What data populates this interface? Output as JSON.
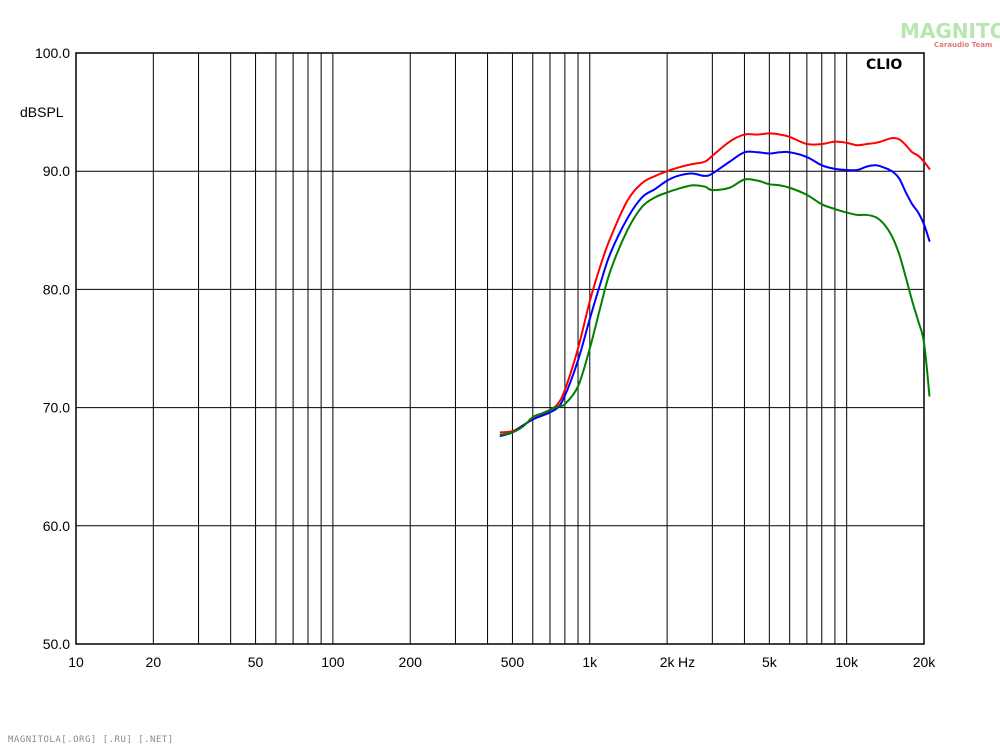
{
  "chart_data": {
    "type": "line",
    "title": "",
    "ylabel": "dBSPL",
    "xlabel": "Hz",
    "x_scale": "log",
    "xlim": [
      10,
      20000
    ],
    "ylim": [
      50,
      100
    ],
    "grid": true,
    "y_ticks": [
      50,
      60,
      70,
      80,
      90,
      100
    ],
    "y_tick_labels": [
      "50.0",
      "60.0",
      "70.0",
      "80.0",
      "90.0",
      "100.0"
    ],
    "x_tick_labels": [
      {
        "value": 10,
        "label": "10"
      },
      {
        "value": 20,
        "label": "20"
      },
      {
        "value": 50,
        "label": "50"
      },
      {
        "value": 100,
        "label": "100"
      },
      {
        "value": 200,
        "label": "200"
      },
      {
        "value": 500,
        "label": "500"
      },
      {
        "value": 1000,
        "label": "1k"
      },
      {
        "value": 2000,
        "label": "2k"
      },
      {
        "value": 5000,
        "label": "5k"
      },
      {
        "value": 10000,
        "label": "10k"
      },
      {
        "value": 20000,
        "label": "20k"
      }
    ],
    "x_gridlines": [
      20,
      30,
      40,
      50,
      60,
      70,
      80,
      90,
      100,
      200,
      300,
      400,
      500,
      600,
      700,
      800,
      900,
      1000,
      2000,
      3000,
      4000,
      5000,
      6000,
      7000,
      8000,
      9000,
      10000,
      20000
    ],
    "series": [
      {
        "color": "#ff0000",
        "points": [
          [
            450,
            67.9
          ],
          [
            500,
            68.0
          ],
          [
            550,
            68.5
          ],
          [
            600,
            69.0
          ],
          [
            650,
            69.4
          ],
          [
            700,
            69.8
          ],
          [
            750,
            70.3
          ],
          [
            800,
            71.5
          ],
          [
            900,
            75.0
          ],
          [
            1000,
            79.0
          ],
          [
            1100,
            82.0
          ],
          [
            1200,
            84.3
          ],
          [
            1400,
            87.5
          ],
          [
            1600,
            89.0
          ],
          [
            1800,
            89.6
          ],
          [
            2000,
            90.0
          ],
          [
            2200,
            90.3
          ],
          [
            2500,
            90.6
          ],
          [
            2800,
            90.8
          ],
          [
            3000,
            91.3
          ],
          [
            3500,
            92.5
          ],
          [
            4000,
            93.1
          ],
          [
            4500,
            93.1
          ],
          [
            5000,
            93.2
          ],
          [
            5500,
            93.1
          ],
          [
            6000,
            92.9
          ],
          [
            7000,
            92.3
          ],
          [
            8000,
            92.3
          ],
          [
            9000,
            92.5
          ],
          [
            10000,
            92.4
          ],
          [
            11000,
            92.2
          ],
          [
            12000,
            92.3
          ],
          [
            13000,
            92.4
          ],
          [
            14000,
            92.6
          ],
          [
            15000,
            92.8
          ],
          [
            16000,
            92.7
          ],
          [
            17000,
            92.2
          ],
          [
            18000,
            91.6
          ],
          [
            19000,
            91.3
          ],
          [
            20000,
            90.8
          ],
          [
            21000,
            90.2
          ]
        ]
      },
      {
        "color": "#0000ff",
        "points": [
          [
            450,
            67.6
          ],
          [
            500,
            67.9
          ],
          [
            550,
            68.5
          ],
          [
            600,
            69.0
          ],
          [
            650,
            69.3
          ],
          [
            700,
            69.6
          ],
          [
            750,
            70.0
          ],
          [
            800,
            71.0
          ],
          [
            900,
            74.0
          ],
          [
            1000,
            77.5
          ],
          [
            1100,
            80.5
          ],
          [
            1200,
            83.0
          ],
          [
            1400,
            86.0
          ],
          [
            1600,
            87.8
          ],
          [
            1800,
            88.5
          ],
          [
            2000,
            89.2
          ],
          [
            2200,
            89.6
          ],
          [
            2500,
            89.8
          ],
          [
            2800,
            89.6
          ],
          [
            3000,
            89.8
          ],
          [
            3500,
            90.8
          ],
          [
            4000,
            91.6
          ],
          [
            4500,
            91.6
          ],
          [
            5000,
            91.5
          ],
          [
            5500,
            91.6
          ],
          [
            6000,
            91.6
          ],
          [
            7000,
            91.2
          ],
          [
            8000,
            90.5
          ],
          [
            9000,
            90.2
          ],
          [
            10000,
            90.1
          ],
          [
            11000,
            90.1
          ],
          [
            12000,
            90.4
          ],
          [
            13000,
            90.5
          ],
          [
            14000,
            90.3
          ],
          [
            15000,
            90.0
          ],
          [
            16000,
            89.4
          ],
          [
            17000,
            88.2
          ],
          [
            18000,
            87.2
          ],
          [
            19000,
            86.5
          ],
          [
            20000,
            85.5
          ],
          [
            21000,
            84.1
          ]
        ]
      },
      {
        "color": "#008000",
        "points": [
          [
            450,
            67.7
          ],
          [
            500,
            67.9
          ],
          [
            550,
            68.4
          ],
          [
            600,
            69.2
          ],
          [
            650,
            69.5
          ],
          [
            700,
            69.8
          ],
          [
            750,
            70.1
          ],
          [
            800,
            70.3
          ],
          [
            900,
            71.8
          ],
          [
            1000,
            75.0
          ],
          [
            1100,
            78.5
          ],
          [
            1200,
            81.5
          ],
          [
            1400,
            85.0
          ],
          [
            1600,
            87.0
          ],
          [
            1800,
            87.8
          ],
          [
            2000,
            88.2
          ],
          [
            2200,
            88.5
          ],
          [
            2500,
            88.8
          ],
          [
            2800,
            88.7
          ],
          [
            3000,
            88.4
          ],
          [
            3500,
            88.6
          ],
          [
            4000,
            89.3
          ],
          [
            4500,
            89.2
          ],
          [
            5000,
            88.9
          ],
          [
            5500,
            88.8
          ],
          [
            6000,
            88.6
          ],
          [
            7000,
            88.0
          ],
          [
            8000,
            87.2
          ],
          [
            9000,
            86.8
          ],
          [
            10000,
            86.5
          ],
          [
            11000,
            86.3
          ],
          [
            12000,
            86.3
          ],
          [
            13000,
            86.1
          ],
          [
            14000,
            85.5
          ],
          [
            15000,
            84.5
          ],
          [
            16000,
            83.0
          ],
          [
            17000,
            81.0
          ],
          [
            18000,
            79.0
          ],
          [
            19000,
            77.3
          ],
          [
            20000,
            75.5
          ],
          [
            21000,
            71.0
          ]
        ]
      }
    ]
  },
  "brand": "CLIO",
  "watermark": {
    "title": "MAGNITOLA",
    "subtitle": "Caraudio Team"
  },
  "footer": "MAGNITOLA[.ORG] [.RU] [.NET]"
}
